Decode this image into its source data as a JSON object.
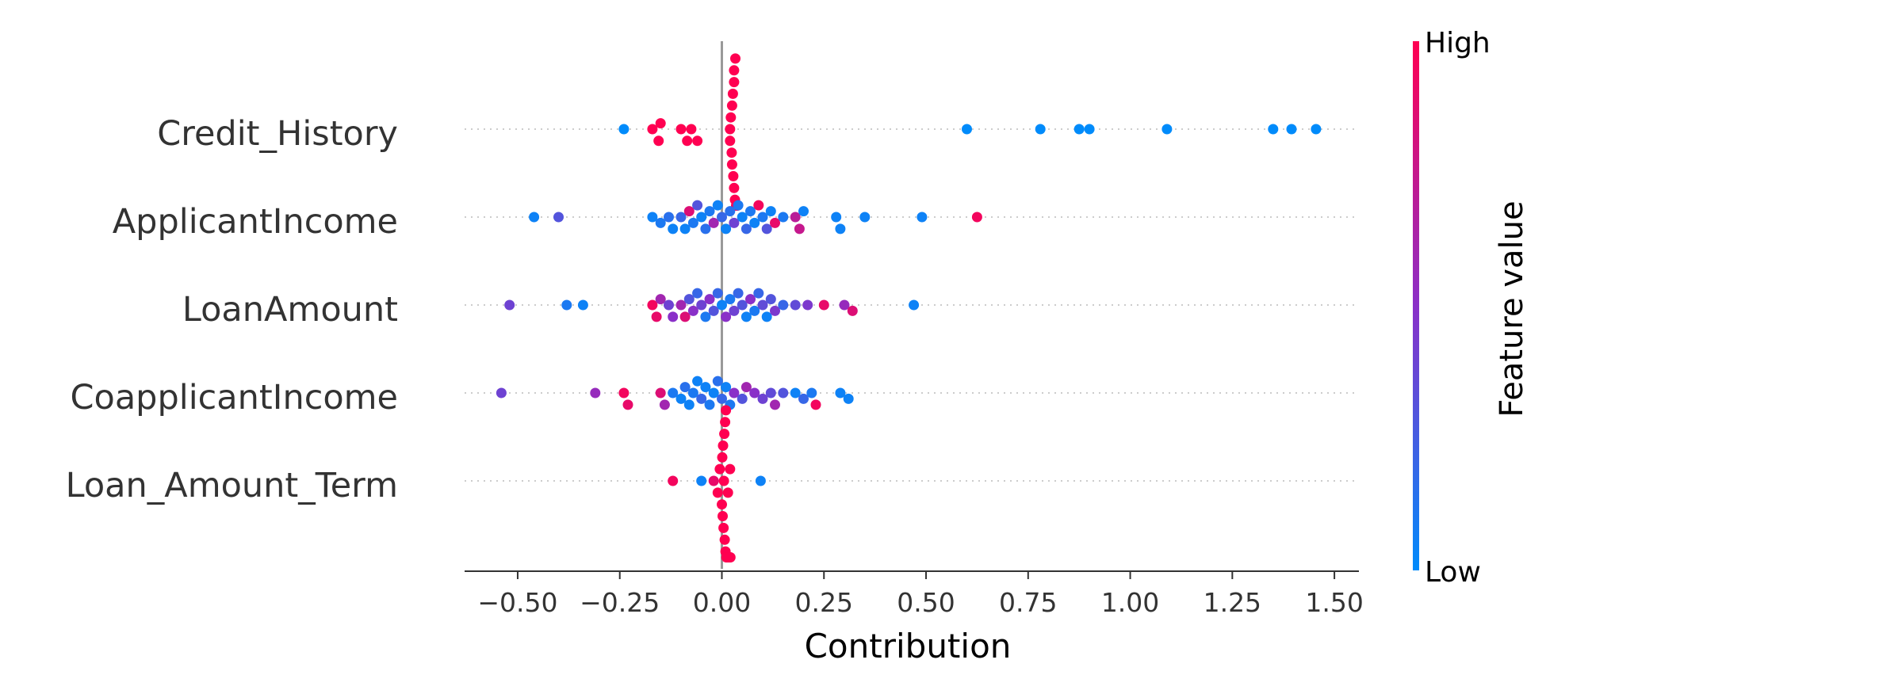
{
  "chart_data": {
    "type": "scatter",
    "subtype": "beeswarm-summary",
    "xlabel": "Contribution",
    "xlim": [
      -0.63,
      1.56
    ],
    "xticks": [
      -0.5,
      -0.25,
      0.0,
      0.25,
      0.5,
      0.75,
      1.0,
      1.25,
      1.5
    ],
    "xtick_labels": [
      "−0.50",
      "−0.25",
      "0.00",
      "0.25",
      "0.50",
      "0.75",
      "1.00",
      "1.25",
      "1.50"
    ],
    "features": [
      "Credit_History",
      "ApplicantIncome",
      "LoanAmount",
      "CoapplicantIncome",
      "Loan_Amount_Term"
    ],
    "colorbar": {
      "title": "Feature value",
      "high_label": "High",
      "low_label": "Low",
      "high_color": "#ff0051",
      "low_color": "#008bfb"
    },
    "grid": false,
    "zero_line": true,
    "points": {
      "Credit_History": [
        [
          -0.24,
          0.0
        ],
        [
          -0.17,
          1.0
        ],
        [
          -0.155,
          1.0
        ],
        [
          -0.15,
          1.0
        ],
        [
          -0.1,
          1.0
        ],
        [
          -0.085,
          1.0
        ],
        [
          -0.075,
          1.0
        ],
        [
          -0.06,
          1.0
        ],
        [
          0.02,
          1.0
        ],
        [
          0.022,
          1.0
        ],
        [
          0.025,
          1.0
        ],
        [
          0.028,
          1.0
        ],
        [
          0.03,
          1.0
        ],
        [
          0.032,
          1.0
        ],
        [
          0.035,
          1.0
        ],
        [
          0.038,
          1.0
        ],
        [
          0.02,
          1.0
        ],
        [
          0.024,
          1.0
        ],
        [
          0.027,
          1.0
        ],
        [
          0.03,
          1.0
        ],
        [
          0.033,
          1.0
        ],
        [
          0.036,
          1.0
        ],
        [
          0.025,
          1.0
        ],
        [
          0.03,
          1.0
        ],
        [
          0.6,
          0.0
        ],
        [
          0.78,
          0.0
        ],
        [
          0.875,
          0.0
        ],
        [
          0.9,
          0.0
        ],
        [
          1.09,
          0.0
        ],
        [
          1.35,
          0.0
        ],
        [
          1.395,
          0.0
        ],
        [
          1.455,
          0.0
        ]
      ],
      "ApplicantIncome": [
        [
          -0.46,
          0.05
        ],
        [
          -0.4,
          0.3
        ],
        [
          -0.17,
          0.05
        ],
        [
          -0.15,
          0.1
        ],
        [
          -0.13,
          0.15
        ],
        [
          -0.12,
          0.05
        ],
        [
          -0.1,
          0.2
        ],
        [
          -0.09,
          0.05
        ],
        [
          -0.08,
          0.85
        ],
        [
          -0.07,
          0.1
        ],
        [
          -0.06,
          0.3
        ],
        [
          -0.05,
          0.05
        ],
        [
          -0.04,
          0.15
        ],
        [
          -0.03,
          0.1
        ],
        [
          -0.02,
          0.6
        ],
        [
          -0.01,
          0.05
        ],
        [
          0.0,
          0.2
        ],
        [
          0.01,
          0.05
        ],
        [
          0.02,
          0.15
        ],
        [
          0.03,
          0.4
        ],
        [
          0.04,
          0.1
        ],
        [
          0.05,
          0.05
        ],
        [
          0.06,
          0.2
        ],
        [
          0.07,
          0.1
        ],
        [
          0.08,
          0.05
        ],
        [
          0.09,
          0.95
        ],
        [
          0.1,
          0.1
        ],
        [
          0.11,
          0.3
        ],
        [
          0.12,
          0.05
        ],
        [
          0.13,
          0.9
        ],
        [
          0.15,
          0.1
        ],
        [
          0.18,
          0.7
        ],
        [
          0.19,
          0.75
        ],
        [
          0.2,
          0.05
        ],
        [
          0.28,
          0.05
        ],
        [
          0.29,
          0.05
        ],
        [
          0.35,
          0.05
        ],
        [
          0.49,
          0.05
        ],
        [
          0.625,
          0.95
        ]
      ],
      "LoanAmount": [
        [
          -0.52,
          0.4
        ],
        [
          -0.38,
          0.1
        ],
        [
          -0.34,
          0.05
        ],
        [
          -0.17,
          0.95
        ],
        [
          -0.16,
          0.9
        ],
        [
          -0.15,
          0.6
        ],
        [
          -0.13,
          0.4
        ],
        [
          -0.12,
          0.5
        ],
        [
          -0.1,
          0.6
        ],
        [
          -0.09,
          0.85
        ],
        [
          -0.08,
          0.3
        ],
        [
          -0.07,
          0.5
        ],
        [
          -0.06,
          0.2
        ],
        [
          -0.05,
          0.4
        ],
        [
          -0.04,
          0.1
        ],
        [
          -0.03,
          0.5
        ],
        [
          -0.02,
          0.3
        ],
        [
          -0.01,
          0.2
        ],
        [
          0.0,
          0.05
        ],
        [
          0.01,
          0.5
        ],
        [
          0.02,
          0.1
        ],
        [
          0.03,
          0.4
        ],
        [
          0.04,
          0.2
        ],
        [
          0.05,
          0.3
        ],
        [
          0.06,
          0.05
        ],
        [
          0.07,
          0.5
        ],
        [
          0.08,
          0.1
        ],
        [
          0.09,
          0.2
        ],
        [
          0.1,
          0.35
        ],
        [
          0.11,
          0.05
        ],
        [
          0.12,
          0.3
        ],
        [
          0.13,
          0.45
        ],
        [
          0.15,
          0.2
        ],
        [
          0.18,
          0.35
        ],
        [
          0.21,
          0.45
        ],
        [
          0.25,
          0.9
        ],
        [
          0.3,
          0.55
        ],
        [
          0.32,
          0.85
        ],
        [
          0.47,
          0.05
        ]
      ],
      "CoapplicantIncome": [
        [
          -0.54,
          0.4
        ],
        [
          -0.31,
          0.55
        ],
        [
          -0.24,
          0.95
        ],
        [
          -0.23,
          0.9
        ],
        [
          -0.15,
          0.85
        ],
        [
          -0.14,
          0.6
        ],
        [
          -0.12,
          0.1
        ],
        [
          -0.1,
          0.05
        ],
        [
          -0.09,
          0.15
        ],
        [
          -0.08,
          0.05
        ],
        [
          -0.07,
          0.1
        ],
        [
          -0.06,
          0.05
        ],
        [
          -0.05,
          0.2
        ],
        [
          -0.04,
          0.05
        ],
        [
          -0.03,
          0.1
        ],
        [
          -0.02,
          0.05
        ],
        [
          -0.01,
          0.15
        ],
        [
          0.0,
          0.2
        ],
        [
          0.01,
          0.05
        ],
        [
          0.02,
          0.1
        ],
        [
          0.03,
          0.5
        ],
        [
          0.05,
          0.3
        ],
        [
          0.06,
          0.6
        ],
        [
          0.08,
          0.5
        ],
        [
          0.1,
          0.4
        ],
        [
          0.12,
          0.35
        ],
        [
          0.13,
          0.6
        ],
        [
          0.15,
          0.3
        ],
        [
          0.18,
          0.05
        ],
        [
          0.2,
          0.2
        ],
        [
          0.22,
          0.1
        ],
        [
          0.23,
          0.95
        ],
        [
          0.29,
          0.05
        ],
        [
          0.31,
          0.05
        ]
      ],
      "Loan_Amount_Term": [
        [
          -0.12,
          0.95
        ],
        [
          -0.05,
          0.05
        ],
        [
          -0.02,
          0.9
        ],
        [
          -0.01,
          1.0
        ],
        [
          -0.005,
          1.0
        ],
        [
          0.0,
          1.0
        ],
        [
          0.003,
          1.0
        ],
        [
          0.006,
          1.0
        ],
        [
          0.009,
          1.0
        ],
        [
          0.012,
          1.0
        ],
        [
          0.015,
          1.0
        ],
        [
          0.018,
          1.0
        ],
        [
          0.021,
          1.0
        ],
        [
          0.001,
          1.0
        ],
        [
          0.004,
          1.0
        ],
        [
          0.007,
          1.0
        ],
        [
          0.01,
          1.0
        ],
        [
          0.013,
          1.0
        ],
        [
          0.016,
          1.0
        ],
        [
          0.019,
          1.0
        ],
        [
          0.002,
          1.0
        ],
        [
          0.008,
          1.0
        ],
        [
          0.014,
          1.0
        ],
        [
          0.02,
          1.0
        ],
        [
          0.005,
          1.0
        ],
        [
          0.011,
          1.0
        ],
        [
          0.095,
          0.05
        ]
      ]
    }
  }
}
